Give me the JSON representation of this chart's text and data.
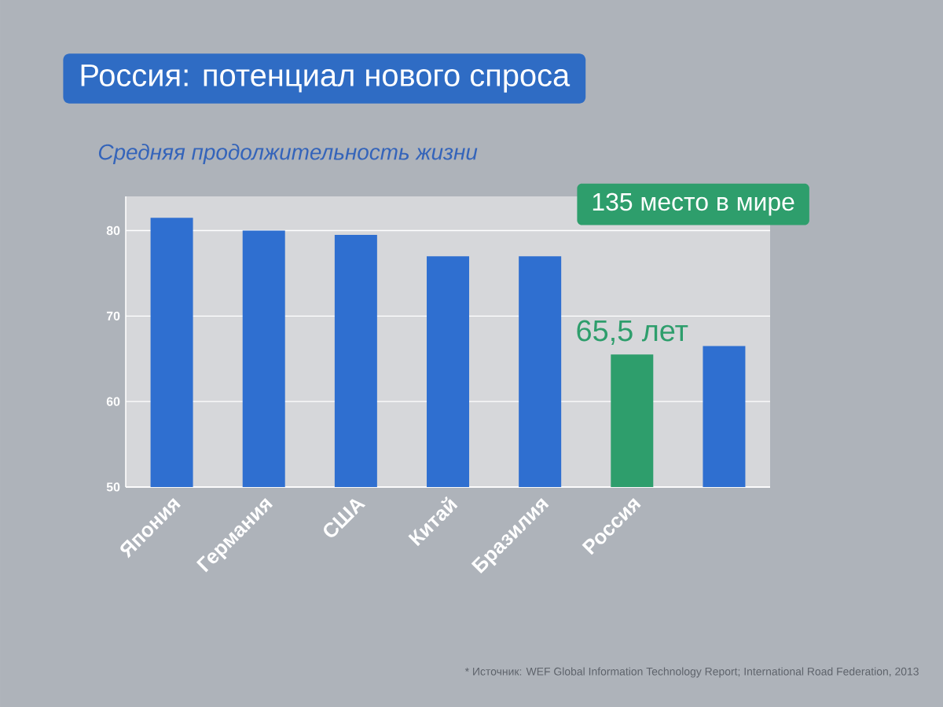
{
  "chart_data": {
    "type": "bar",
    "title": "Россия: потенциал нового спроса",
    "subtitle": "Средняя продолжительность жизни",
    "categories": [
      "Япония",
      "Германия",
      "США",
      "Китай",
      "Бразилия",
      "Россия",
      null
    ],
    "values": [
      81.5,
      80,
      79.5,
      77,
      77,
      65.5,
      66.5
    ],
    "colors": [
      "#2f6fd0",
      "#2f6fd0",
      "#2f6fd0",
      "#2f6fd0",
      "#2f6fd0",
      "#2e9e6c",
      "#2f6fd0"
    ],
    "value_labels": [
      null,
      null,
      null,
      null,
      null,
      "65,5 лет",
      null
    ],
    "annotations": [
      "135 место в мире",
      "* Источник: WEF Global Information Technology Report; International Road Federation, 2013"
    ],
    "ylim": [
      50,
      84
    ],
    "yticks": [
      50,
      60,
      70,
      80
    ],
    "grid": "y"
  }
}
